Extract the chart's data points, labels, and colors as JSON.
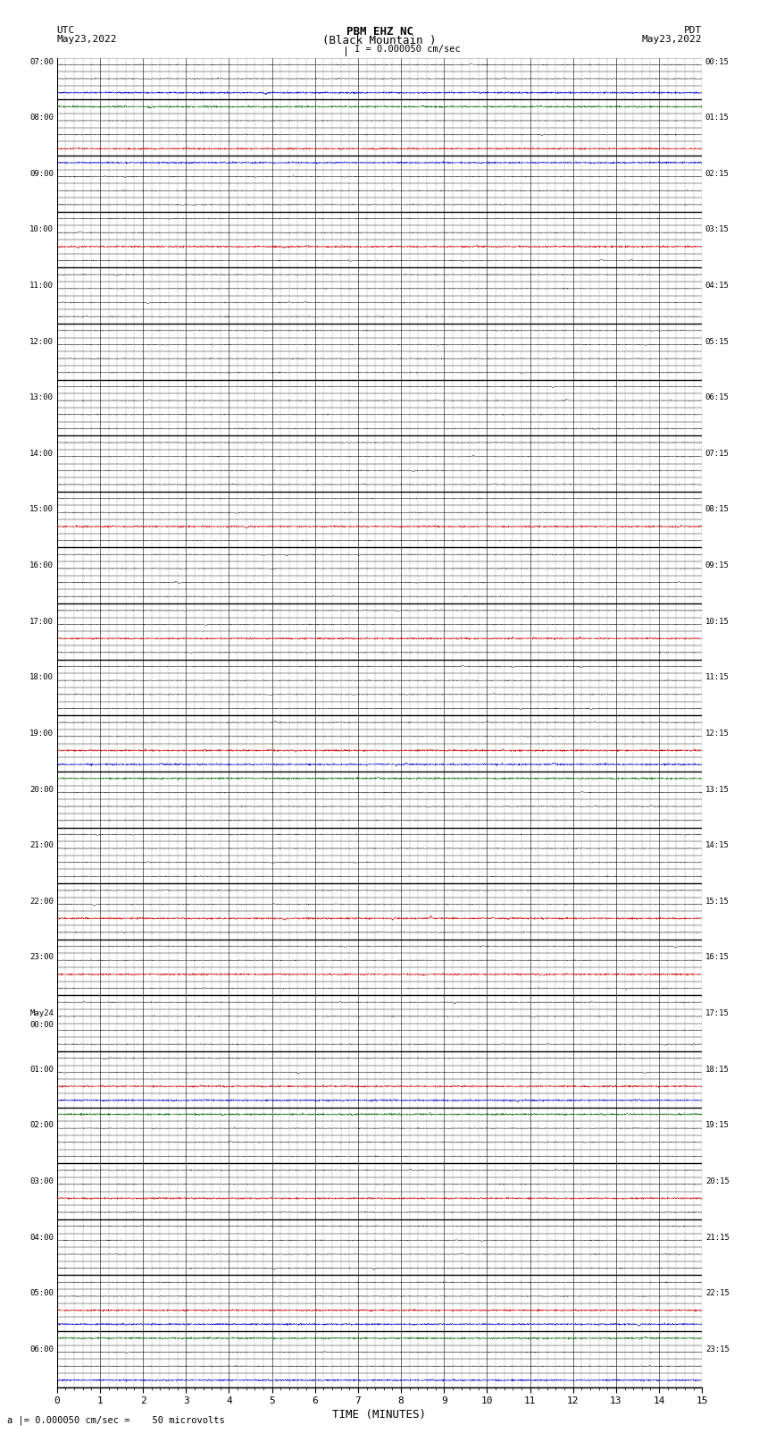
{
  "title_line1": "PBM EHZ NC",
  "title_line2": "(Black Mountain )",
  "scale_label": "I = 0.000050 cm/sec",
  "left_label_top": "UTC",
  "left_label_date": "May23,2022",
  "right_label_top": "PDT",
  "right_label_date": "May23,2022",
  "bottom_label": "TIME (MINUTES)",
  "footer_label": "a |= 0.000050 cm/sec =    50 microvolts",
  "xlabel_ticks": [
    0,
    1,
    2,
    3,
    4,
    5,
    6,
    7,
    8,
    9,
    10,
    11,
    12,
    13,
    14,
    15
  ],
  "utc_labels": [
    "07:00",
    "08:00",
    "09:00",
    "10:00",
    "11:00",
    "12:00",
    "13:00",
    "14:00",
    "15:00",
    "16:00",
    "17:00",
    "18:00",
    "19:00",
    "20:00",
    "21:00",
    "22:00",
    "23:00",
    "May24\n00:00",
    "01:00",
    "02:00",
    "03:00",
    "04:00",
    "05:00",
    "06:00"
  ],
  "pdt_labels": [
    "00:15",
    "01:15",
    "02:15",
    "03:15",
    "04:15",
    "05:15",
    "06:15",
    "07:15",
    "08:15",
    "09:15",
    "10:15",
    "11:15",
    "12:15",
    "13:15",
    "14:15",
    "15:15",
    "16:15",
    "17:15",
    "18:15",
    "19:15",
    "20:15",
    "21:15",
    "22:15",
    "23:15"
  ],
  "n_rows": 95,
  "rows_per_hour": 4,
  "n_minutes": 15,
  "bg_color": "#ffffff",
  "colors": {
    "black": "#000000",
    "red": "#cc0000",
    "blue": "#0000cc",
    "green": "#006600"
  },
  "row_colors": {
    "0": "black",
    "1": "black",
    "2": "blue",
    "3": "green",
    "4": "black",
    "5": "black",
    "6": "red",
    "7": "blue",
    "8": "black",
    "9": "black",
    "10": "black",
    "11": "black",
    "12": "black",
    "13": "red",
    "14": "black",
    "15": "black",
    "16": "black",
    "17": "black",
    "18": "black",
    "19": "black",
    "20": "black",
    "21": "black",
    "22": "black",
    "23": "black",
    "24": "black",
    "25": "black",
    "26": "black",
    "27": "black",
    "28": "black",
    "29": "black",
    "30": "black",
    "31": "black",
    "32": "black",
    "33": "red",
    "34": "black",
    "35": "black",
    "36": "black",
    "37": "black",
    "38": "black",
    "39": "black",
    "40": "black",
    "41": "red",
    "42": "black",
    "43": "black",
    "44": "black",
    "45": "black",
    "46": "black",
    "47": "black",
    "48": "black",
    "49": "red",
    "50": "blue",
    "51": "green",
    "52": "black",
    "53": "black",
    "54": "black",
    "55": "black",
    "56": "black",
    "57": "black",
    "58": "black",
    "59": "black",
    "60": "black",
    "61": "red",
    "62": "black",
    "63": "black",
    "64": "black",
    "65": "red",
    "66": "black",
    "67": "black",
    "68": "black",
    "69": "black",
    "70": "black",
    "71": "black",
    "72": "black",
    "73": "red",
    "74": "blue",
    "75": "green",
    "76": "black",
    "77": "black",
    "78": "black",
    "79": "black",
    "80": "black",
    "81": "red",
    "82": "black",
    "83": "black",
    "84": "black",
    "85": "black",
    "86": "black",
    "87": "black",
    "88": "black",
    "89": "red",
    "90": "blue",
    "91": "green",
    "92": "black",
    "93": "black",
    "94": "blue"
  },
  "figsize": [
    8.5,
    16.13
  ],
  "dpi": 100
}
